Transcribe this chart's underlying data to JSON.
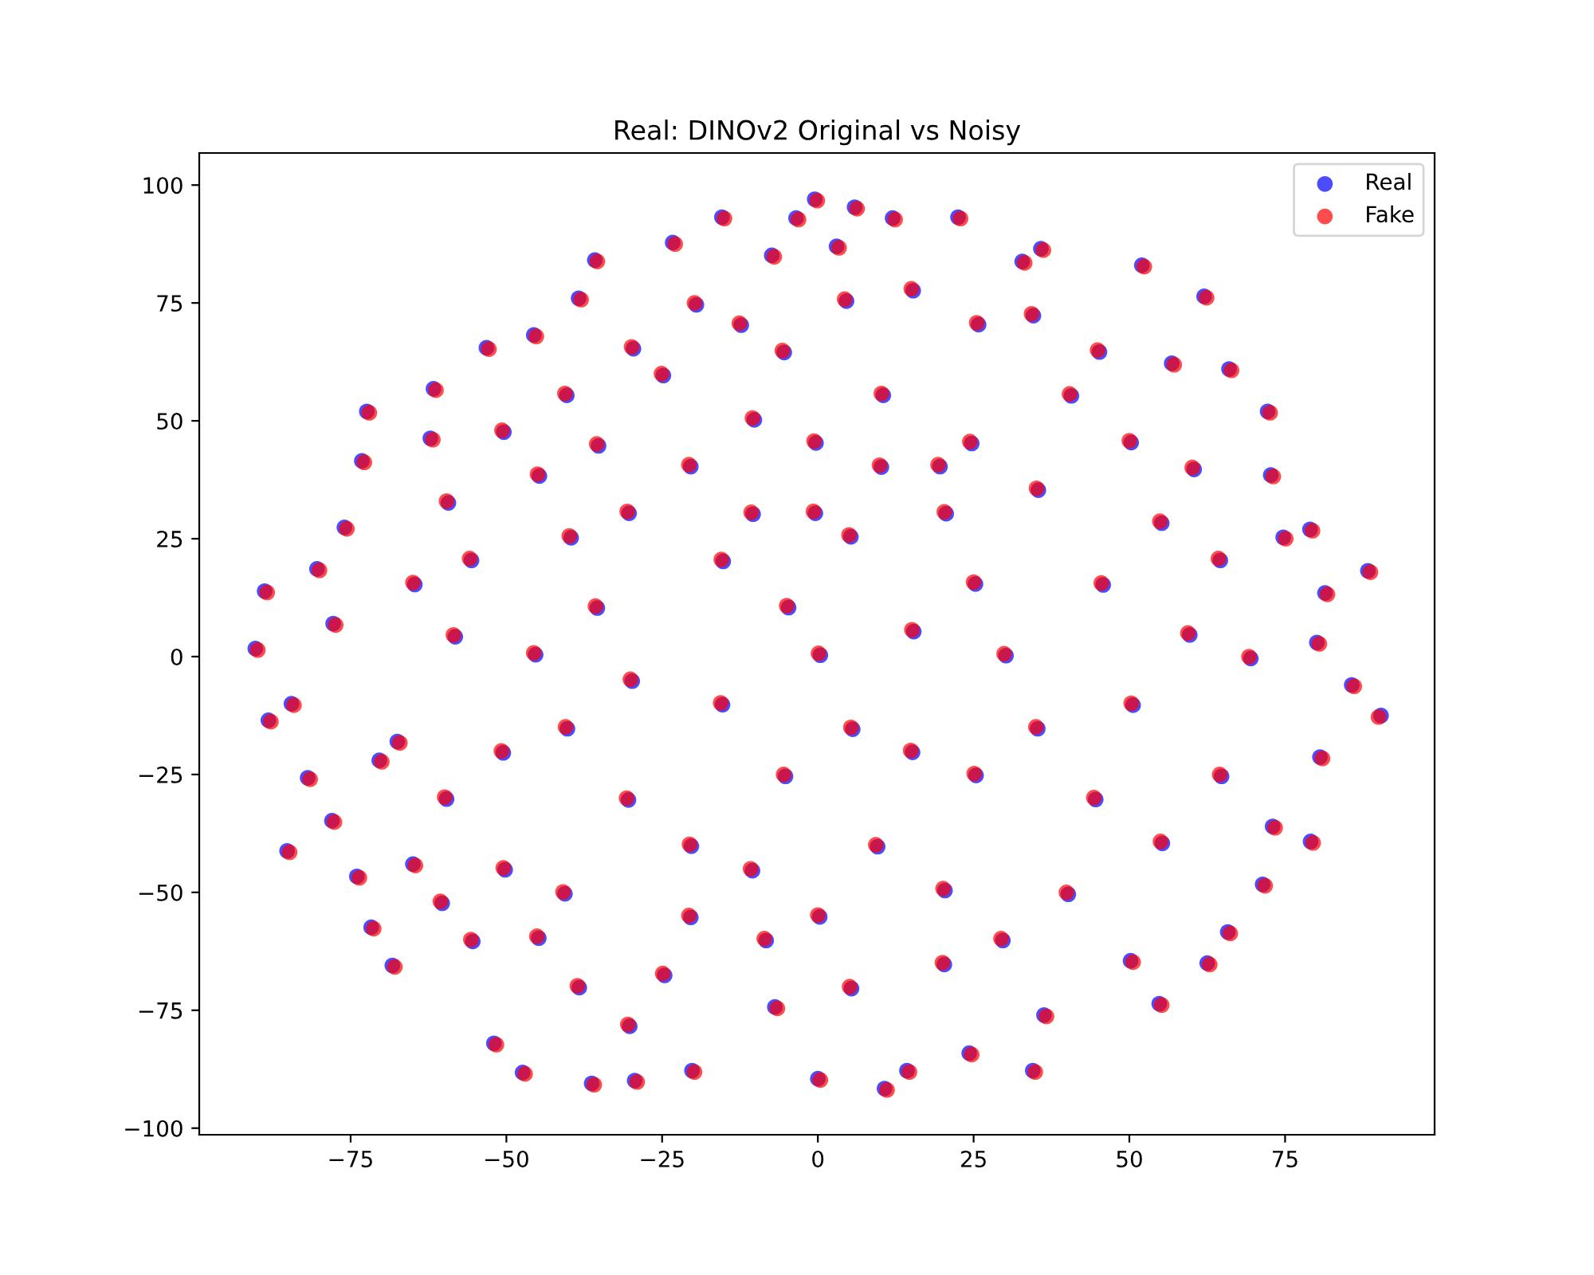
{
  "chart_data": {
    "type": "scatter",
    "title": "Real: DINOv2 Original vs Noisy",
    "series": [
      {
        "name": "Real",
        "color": "#0000ff",
        "x": [
          -90.3,
          -88.8,
          -88.2,
          -84.5,
          -81.9,
          -85.2,
          -78.0,
          -80.4,
          -77.8,
          -76.0,
          -73.2,
          -72.4,
          -61.7,
          -62.2,
          -53.2,
          -45.6,
          -38.4,
          -35.8,
          -23.3,
          -15.4,
          -7.4,
          -3.5,
          -0.5,
          5.9,
          3.0,
          12.0,
          22.5,
          32.8,
          35.8,
          52.0,
          62.0,
          56.8,
          66.0,
          72.2,
          72.7,
          74.7,
          79.0,
          81.4,
          88.3,
          90.4,
          85.7,
          80.1,
          80.6,
          79.1,
          71.4,
          73.0,
          65.8,
          62.5,
          54.8,
          50.2,
          36.3,
          34.5,
          24.3,
          14.3,
          10.7,
          0.0,
          -6.9,
          -20.2,
          -29.4,
          -36.3,
          -47.4,
          -52.0,
          -68.3,
          -71.7,
          -74.0,
          -70.4,
          -67.5,
          -65.0,
          -59.3,
          -55.6,
          -64.7,
          -58.2,
          -50.4,
          -44.7,
          -40.3,
          -35.2,
          -29.6,
          -24.8,
          -19.5,
          -12.3,
          -5.4,
          4.6,
          15.3,
          25.8,
          34.6,
          45.2,
          40.7,
          50.3,
          60.4,
          55.2,
          64.6,
          45.8,
          59.7,
          69.5,
          50.6,
          64.8,
          55.3,
          44.6,
          40.2,
          29.7,
          20.4,
          9.6,
          0.3,
          -10.5,
          -20.3,
          -30.4,
          -40.6,
          -50.2,
          -55.4,
          -44.8,
          -38.3,
          -30.2,
          -24.6,
          -60.3,
          -59.6,
          -50.5,
          -40.2,
          -29.8,
          -45.3,
          -35.4,
          -39.6,
          -30.3,
          -20.4,
          -15.2,
          -4.7,
          0.4,
          5.3,
          10.2,
          20.6,
          25.3,
          15.4,
          30.2,
          35.4,
          24.7,
          10.5,
          -0.3,
          -10.4,
          5.6,
          15.2,
          25.4,
          35.3,
          -15.3,
          -5.2,
          20.3,
          5.4,
          -8.3,
          -20.4,
          -10.2,
          -0.4,
          19.6
        ],
        "values": [
          1.7,
          13.9,
          -13.5,
          -10.0,
          -25.7,
          -41.2,
          -34.8,
          18.6,
          7.0,
          27.4,
          41.5,
          52.0,
          56.8,
          46.3,
          65.5,
          68.2,
          76.0,
          84.1,
          87.8,
          93.2,
          85.1,
          93.0,
          97.0,
          95.3,
          87.0,
          93.0,
          93.2,
          83.8,
          86.5,
          83.0,
          76.4,
          62.2,
          61.0,
          52.0,
          38.5,
          25.3,
          27.0,
          13.5,
          18.2,
          -12.5,
          -6.0,
          3.0,
          -21.3,
          -39.2,
          -48.3,
          -36.0,
          -58.4,
          -65.0,
          -73.6,
          -64.5,
          -76.0,
          -87.8,
          -84.1,
          -87.8,
          -91.6,
          -89.5,
          -74.3,
          -87.8,
          -89.9,
          -90.5,
          -88.2,
          -82.0,
          -65.5,
          -57.4,
          -46.6,
          -22.0,
          -18.0,
          -44.0,
          32.6,
          20.4,
          15.3,
          4.2,
          47.6,
          38.3,
          55.4,
          44.7,
          65.3,
          59.6,
          74.6,
          70.3,
          64.5,
          75.4,
          77.6,
          70.4,
          72.3,
          64.6,
          55.3,
          45.4,
          39.7,
          28.3,
          20.4,
          15.2,
          4.6,
          -0.4,
          -10.3,
          -25.4,
          -39.6,
          -30.3,
          -50.4,
          -60.2,
          -49.6,
          -40.3,
          -55.2,
          -45.4,
          -40.2,
          -30.4,
          -50.3,
          -45.2,
          -60.4,
          -59.7,
          -70.2,
          -78.4,
          -67.6,
          -52.3,
          -30.2,
          -20.4,
          -15.3,
          -5.2,
          0.4,
          10.3,
          25.2,
          30.4,
          40.3,
          20.2,
          10.4,
          0.3,
          25.4,
          40.2,
          30.3,
          15.4,
          5.3,
          0.2,
          35.3,
          45.2,
          55.4,
          45.3,
          30.2,
          -15.4,
          -20.3,
          -25.2,
          -15.3,
          -10.2,
          -25.4,
          -65.3,
          -70.4,
          -60.2,
          -55.3,
          50.2,
          30.4,
          40.3
        ]
      },
      {
        "name": "Fake",
        "color": "#ff0000",
        "x": [
          -89.9,
          -88.4,
          -87.8,
          -84.1,
          -81.5,
          -84.8,
          -77.6,
          -80.0,
          -77.4,
          -75.6,
          -72.8,
          -72.0,
          -61.3,
          -61.8,
          -52.8,
          -45.2,
          -38.0,
          -35.4,
          -22.9,
          -15.0,
          -7.0,
          -3.1,
          -0.1,
          6.3,
          3.4,
          12.4,
          22.9,
          33.2,
          36.2,
          52.4,
          62.4,
          57.2,
          66.4,
          72.6,
          73.1,
          75.1,
          79.4,
          81.8,
          88.7,
          90.0,
          86.1,
          80.5,
          81.0,
          79.5,
          71.8,
          73.4,
          66.2,
          62.9,
          55.2,
          50.6,
          36.7,
          34.9,
          24.7,
          14.7,
          11.1,
          0.4,
          -6.5,
          -19.8,
          -29.0,
          -35.9,
          -47.0,
          -51.6,
          -67.9,
          -71.3,
          -73.6,
          -70.0,
          -67.1,
          -64.6,
          -59.6,
          -55.9,
          -65.0,
          -58.5,
          -50.7,
          -45.0,
          -40.6,
          -35.5,
          -29.9,
          -25.1,
          -19.8,
          -12.6,
          -5.7,
          4.3,
          15.0,
          25.5,
          34.3,
          44.9,
          40.4,
          50.0,
          60.1,
          54.9,
          64.3,
          45.5,
          59.4,
          69.2,
          50.3,
          64.5,
          55.0,
          44.3,
          39.9,
          29.4,
          20.1,
          9.3,
          0.0,
          -10.8,
          -20.6,
          -30.7,
          -40.9,
          -50.5,
          -55.7,
          -45.1,
          -38.6,
          -30.5,
          -24.9,
          -60.6,
          -59.9,
          -50.8,
          -40.5,
          -30.1,
          -45.6,
          -35.7,
          -39.9,
          -30.6,
          -20.7,
          -15.5,
          -5.0,
          0.1,
          5.0,
          9.9,
          20.3,
          25.0,
          15.1,
          29.9,
          35.1,
          24.4,
          10.2,
          -0.6,
          -10.7,
          5.3,
          14.9,
          25.1,
          35.0,
          -15.6,
          -5.5,
          20.0,
          5.1,
          -8.6,
          -20.7,
          -10.5,
          -0.7,
          19.3
        ],
        "values": [
          1.4,
          13.6,
          -13.8,
          -10.3,
          -26.0,
          -41.5,
          -35.1,
          18.3,
          6.7,
          27.1,
          41.2,
          51.7,
          56.5,
          46.0,
          65.2,
          67.9,
          75.7,
          83.8,
          87.5,
          92.9,
          84.8,
          92.7,
          96.7,
          95.0,
          86.7,
          92.7,
          92.9,
          83.5,
          86.2,
          82.7,
          76.1,
          61.9,
          60.7,
          51.7,
          38.2,
          25.0,
          26.7,
          13.2,
          17.9,
          -12.8,
          -6.3,
          2.7,
          -21.6,
          -39.5,
          -48.6,
          -36.3,
          -58.7,
          -65.3,
          -73.9,
          -64.8,
          -76.3,
          -88.1,
          -84.4,
          -88.1,
          -91.9,
          -89.8,
          -74.6,
          -88.1,
          -90.2,
          -90.8,
          -88.5,
          -82.3,
          -65.8,
          -57.7,
          -46.9,
          -22.3,
          -18.3,
          -44.3,
          33.0,
          20.8,
          15.7,
          4.6,
          48.0,
          38.7,
          55.8,
          45.1,
          65.7,
          60.0,
          75.0,
          70.7,
          64.9,
          75.8,
          78.0,
          70.8,
          72.7,
          65.0,
          55.7,
          45.8,
          40.1,
          28.7,
          20.8,
          15.6,
          5.0,
          0.0,
          -9.9,
          -25.0,
          -39.2,
          -29.9,
          -50.0,
          -59.8,
          -49.2,
          -39.9,
          -54.8,
          -45.0,
          -39.8,
          -30.0,
          -49.9,
          -44.8,
          -60.0,
          -59.3,
          -69.8,
          -78.0,
          -67.2,
          -51.9,
          -29.8,
          -20.0,
          -14.9,
          -4.8,
          0.8,
          10.7,
          25.6,
          30.8,
          40.7,
          20.6,
          10.8,
          0.7,
          25.8,
          40.6,
          30.7,
          15.8,
          5.7,
          0.6,
          35.7,
          45.6,
          55.8,
          45.7,
          30.6,
          -15.0,
          -19.9,
          -24.8,
          -14.9,
          -9.8,
          -25.0,
          -64.9,
          -70.0,
          -59.8,
          -54.9,
          50.6,
          30.8,
          40.7
        ]
      }
    ],
    "xlim": [
      -99.3,
      99.0
    ],
    "ylim": [
      -101.4,
      106.8
    ],
    "xticks": [
      -75,
      -50,
      -25,
      0,
      25,
      50,
      75
    ],
    "yticks": [
      -100,
      -75,
      -50,
      -25,
      0,
      25,
      50,
      75,
      100
    ],
    "legend": "top right",
    "marker": "circle",
    "grid": false
  }
}
